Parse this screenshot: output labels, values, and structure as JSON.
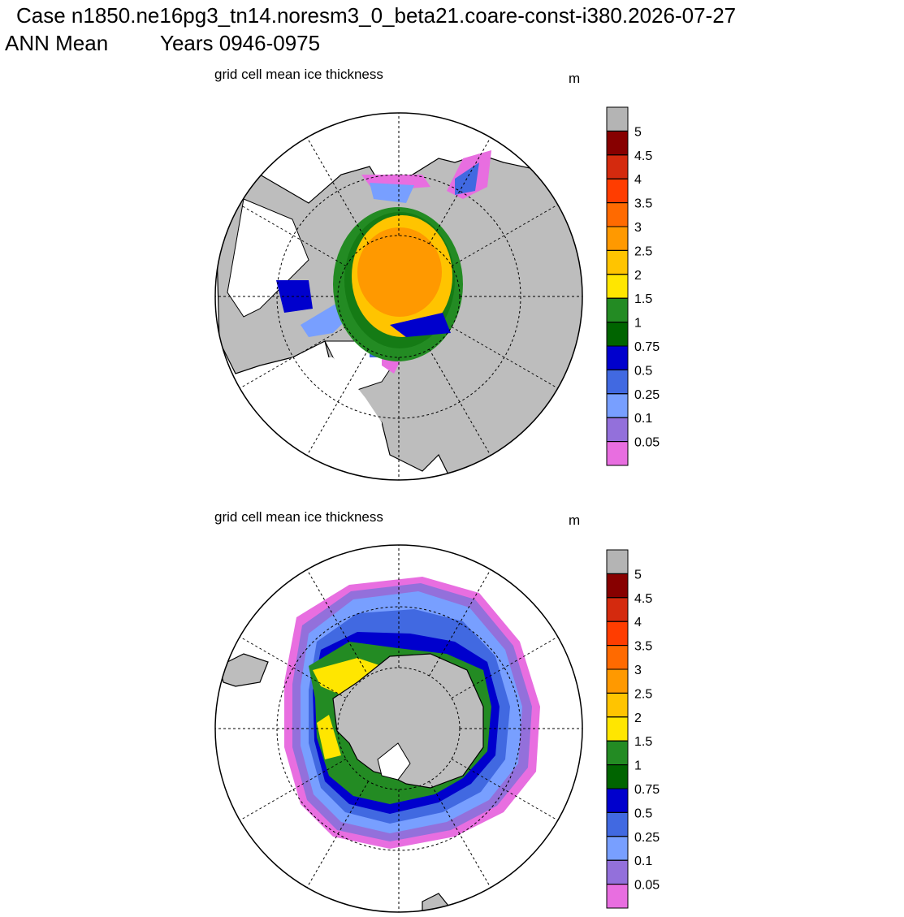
{
  "header": {
    "title": "Case n1850.ne16pg3_tn14.noresm3_0_beta21.coare-const-i380.2026-07-27",
    "season": "ANN Mean",
    "years": "Years 0946-0975"
  },
  "panels": [
    {
      "title": "grid cell mean ice thickness",
      "units": "m",
      "colorbar": {
        "levels": [
          5,
          4.5,
          4,
          3.5,
          3,
          2.5,
          2,
          1.5,
          1,
          0.75,
          0.5,
          0.25,
          0.1,
          0.05
        ],
        "colors": [
          "#b4b4b4",
          "#870000",
          "#d42a0e",
          "#ff3d00",
          "#ff6a00",
          "#ff9900",
          "#ffc400",
          "#ffe600",
          "#238b23",
          "#006400",
          "#0000cd",
          "#4169e1",
          "#789fff",
          "#9370db",
          "#e86ee0"
        ]
      }
    },
    {
      "title": "grid cell mean ice thickness",
      "units": "m",
      "colorbar": {
        "levels": [
          5,
          4.5,
          4,
          3.5,
          3,
          2.5,
          2,
          1.5,
          1,
          0.75,
          0.5,
          0.25,
          0.1,
          0.05
        ],
        "colors": [
          "#b4b4b4",
          "#870000",
          "#d42a0e",
          "#ff3d00",
          "#ff6a00",
          "#ff9900",
          "#ffc400",
          "#ffe600",
          "#238b23",
          "#006400",
          "#0000cd",
          "#4169e1",
          "#789fff",
          "#9370db",
          "#e86ee0"
        ]
      }
    }
  ]
}
